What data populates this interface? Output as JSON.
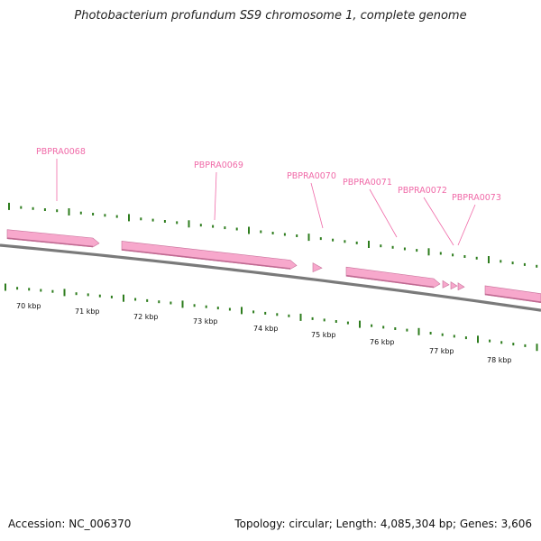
{
  "title": "Photobacterium profundum SS9 chromosome 1, complete genome",
  "footer": {
    "accession": "Accession: NC_006370",
    "summary": "Topology: circular; Length: 4,085,304 bp; Genes: 3,606"
  },
  "colors": {
    "gene_fill": "#f7a8cc",
    "gene_label": "#f06aa8",
    "tick": "#2e7d1e",
    "backbone": "#7a7a7a"
  },
  "genes": [
    {
      "name": "PBPRA0068"
    },
    {
      "name": "PBPRA0069"
    },
    {
      "name": "PBPRA0070"
    },
    {
      "name": "PBPRA0071"
    },
    {
      "name": "PBPRA0072"
    },
    {
      "name": "PBPRA0073"
    }
  ],
  "scale": {
    "labels": [
      "70 kbp",
      "71 kbp",
      "72 kbp",
      "73 kbp",
      "74 kbp",
      "75 kbp",
      "76 kbp",
      "77 kbp",
      "78 kbp"
    ]
  }
}
